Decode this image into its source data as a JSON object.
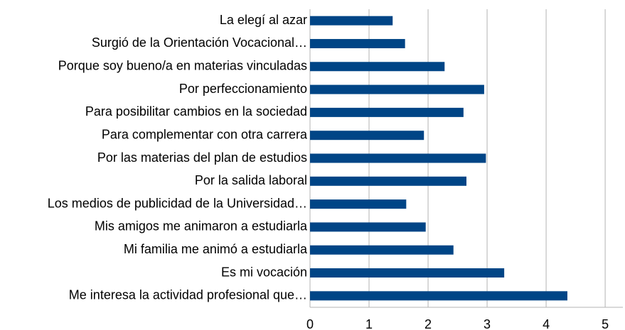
{
  "chart_data": {
    "type": "barh",
    "categories": [
      "La elegí al azar",
      "Surgió de la Orientación Vocacional…",
      "Porque soy bueno/a en materias vinculadas",
      "Por perfeccionamiento",
      "Para posibilitar cambios en la sociedad",
      "Para complementar con otra carrera",
      "Por las materias del plan de estudios",
      "Por la salida laboral",
      "Los medios de publicidad de la Universidad…",
      "Mis amigos me animaron a estudiarla",
      "Mi familia me animó a estudiarla",
      "Es mi vocación",
      "Me interesa la actividad profesional que…"
    ],
    "values": [
      1.4,
      1.61,
      2.28,
      2.95,
      2.6,
      1.93,
      2.98,
      2.65,
      1.63,
      1.96,
      2.43,
      3.29,
      4.36
    ],
    "color": "#004586",
    "xlim": [
      0,
      5.3
    ],
    "xticks": [
      0,
      1,
      2,
      3,
      4,
      5
    ],
    "grid": true
  }
}
